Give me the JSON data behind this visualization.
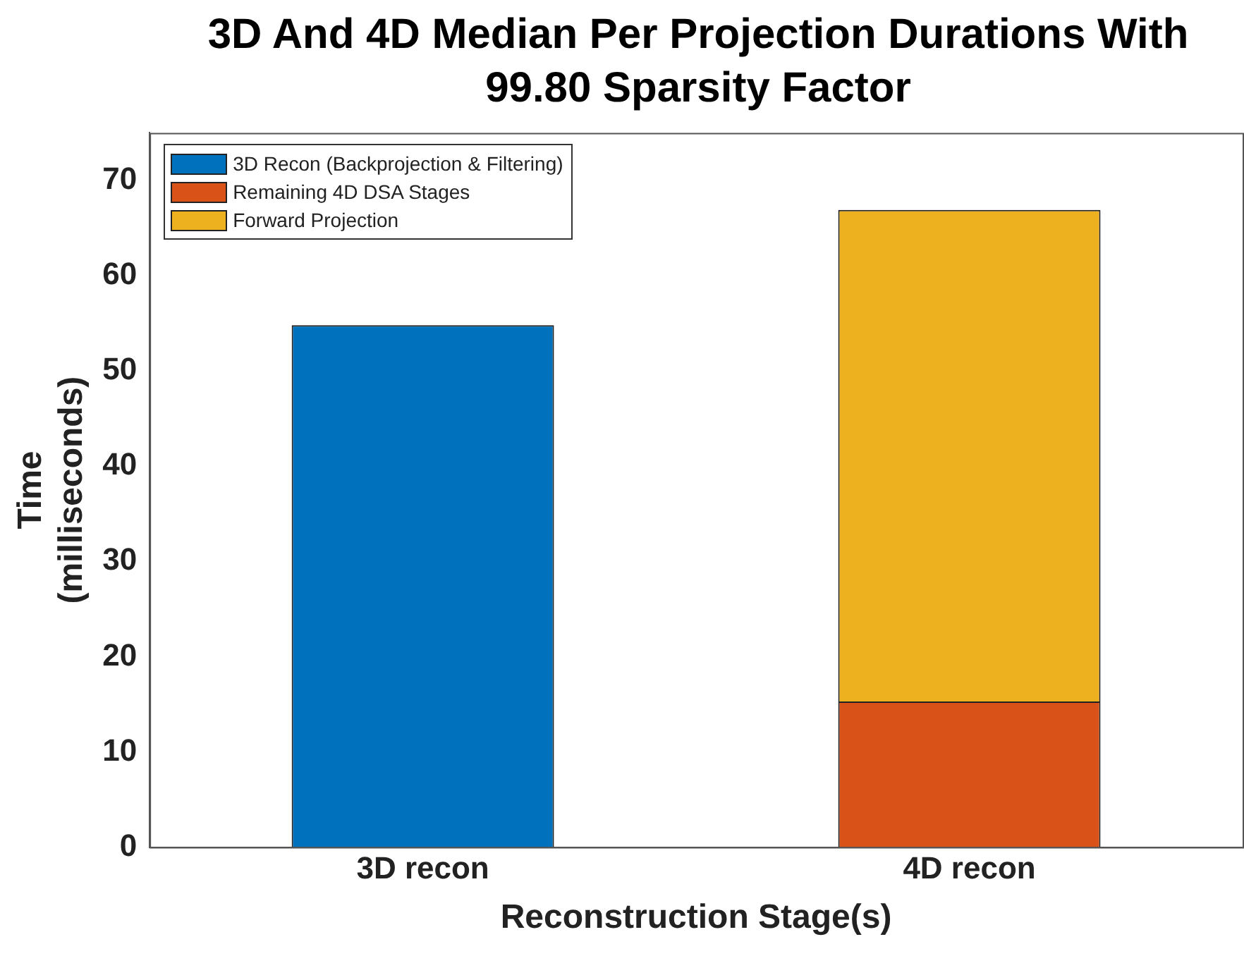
{
  "chart_data": {
    "type": "bar",
    "title": "3D And 4D Median Per Projection Durations With 99.80 Sparsity Factor",
    "xlabel": "Reconstruction Stage(s)",
    "ylabel": "Time (milliseconds)",
    "categories": [
      "3D recon",
      "4D recon"
    ],
    "series": [
      {
        "name": "3D Recon (Backprojection & Filtering)",
        "color": "#0072bd",
        "values": [
          54.8,
          null
        ]
      },
      {
        "name": "Remaining 4D DSA Stages",
        "color": "#d95319",
        "values": [
          null,
          15.3
        ]
      },
      {
        "name": "Forward Projection",
        "color": "#edb120",
        "values": [
          null,
          51.6
        ]
      }
    ],
    "stacked": true,
    "ylim": [
      0,
      75
    ],
    "yticks": [
      0,
      10,
      20,
      30,
      40,
      50,
      60,
      70
    ],
    "grid": false,
    "legend": "top left"
  }
}
